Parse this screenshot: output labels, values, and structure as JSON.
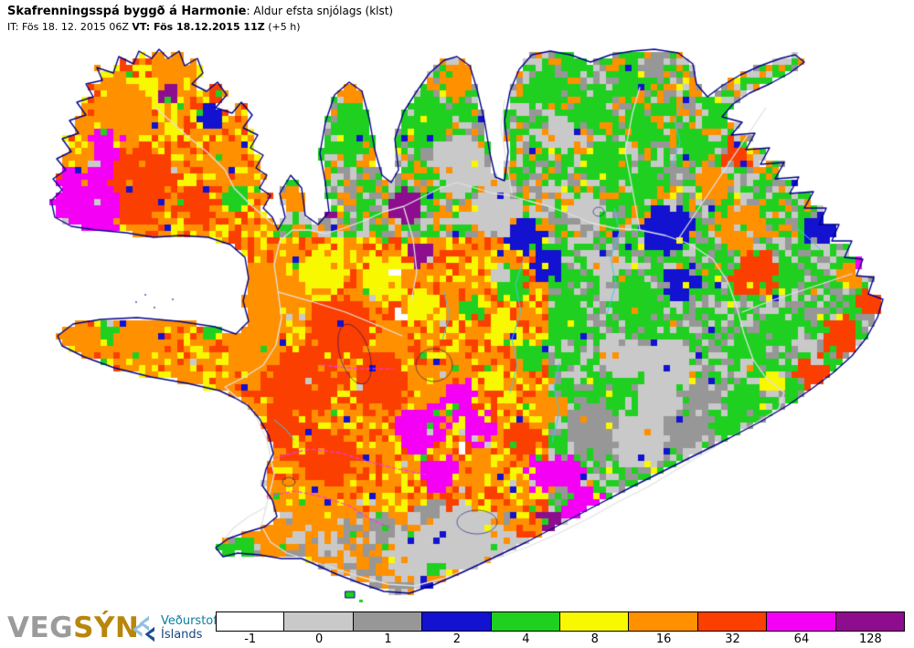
{
  "header": {
    "title_model": "Skafrenningsspá byggð á Harmonie",
    "title_param": ": Aldur efsta snjólags (klst)",
    "init_time": "IT: Fös 18. 12. 2015 06Z ",
    "valid_time": "VT: Fös 18.12.2015 11Z",
    "valid_offset": " (+5 h)"
  },
  "legend": {
    "entries": [
      {
        "label": "-1",
        "color": "#ffffff"
      },
      {
        "label": "0",
        "color": "#c9c9c9"
      },
      {
        "label": "1",
        "color": "#979797"
      },
      {
        "label": "2",
        "color": "#1212d0"
      },
      {
        "label": "4",
        "color": "#20d020"
      },
      {
        "label": "8",
        "color": "#f8f800"
      },
      {
        "label": "16",
        "color": "#ff9000"
      },
      {
        "label": "32",
        "color": "#fb3f00"
      },
      {
        "label": "64",
        "color": "#f400f4"
      },
      {
        "label": "128",
        "color": "#8e0d8e"
      }
    ]
  },
  "footer": {
    "vegsyn_gray": "VEG",
    "vegsyn_gold": "SÝN",
    "vedurstofa_line1": "Veðurstofa",
    "vedurstofa_line2": "Íslands"
  },
  "map_colors": {
    "coastline": "#000089",
    "roads": "#e2e2e2",
    "rivers": "#40c8f0",
    "routes_dashed": "#ff30ff",
    "sea_background": "#ffffff"
  }
}
